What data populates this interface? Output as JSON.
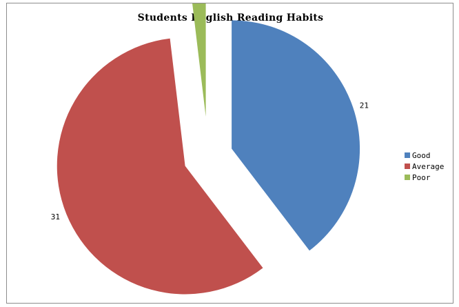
{
  "chart_data": {
    "type": "pie",
    "title": "Students English Reading Habits",
    "categories": [
      "Good",
      "Average",
      "Poor"
    ],
    "values": [
      21,
      31,
      1
    ],
    "colors": [
      "#4f81bd",
      "#c0504d",
      "#9bbb59"
    ],
    "exploded": true,
    "data_labels": true,
    "legend": "right"
  }
}
